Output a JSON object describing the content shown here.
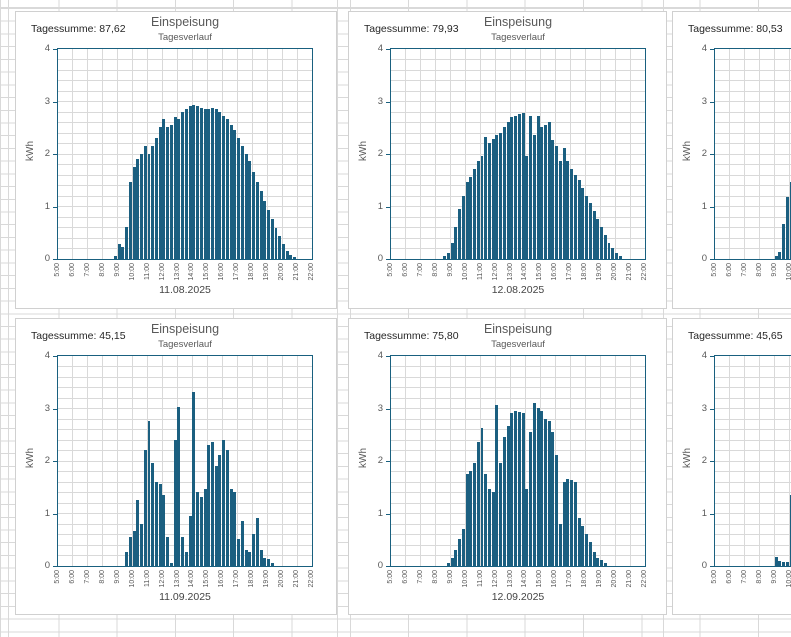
{
  "colors": {
    "bar": "#1b5f80",
    "plot_border": "#19607f",
    "plot_gridline": "#d9d9d9",
    "sheet_gridline": "#d9d9d9",
    "card_border": "#d0d0d0",
    "title_text": "#595959",
    "axis_text": "#595959",
    "summary_text": "#262626",
    "date_text": "#444444"
  },
  "chart_config": {
    "type": "bar",
    "ylabel": "kWh",
    "ylim": [
      0,
      4
    ],
    "y_tick_labels": [
      "4",
      "3",
      "2",
      "1",
      "0"
    ],
    "x_tick_labels": [
      "5:00",
      "6:00",
      "7:00",
      "8:00",
      "9:00",
      "10:00",
      "11:00",
      "12:00",
      "13:00",
      "14:00",
      "15:00",
      "16:00",
      "17:00",
      "18:00",
      "19:00",
      "20:00",
      "21:00",
      "22:00"
    ],
    "x_range": [
      "5:00",
      "22:00"
    ],
    "interval_minutes": 15,
    "grid": "horizontal every 0.2 kWh, vertical every hour"
  },
  "chart_data": [
    {
      "tagessumme": "Tagessumme: 87,62",
      "title": "Einspeisung",
      "subtitle": "Tagesverlauf",
      "date": "11.08.2025",
      "values": [
        0,
        0,
        0,
        0,
        0,
        0,
        0,
        0,
        0,
        0,
        0,
        0,
        0,
        0,
        0,
        0.05,
        0.28,
        0.22,
        0.6,
        1.45,
        1.75,
        1.9,
        2.0,
        2.15,
        2.0,
        2.15,
        2.3,
        2.5,
        2.65,
        2.5,
        2.55,
        2.7,
        2.65,
        2.8,
        2.85,
        2.9,
        2.93,
        2.9,
        2.87,
        2.85,
        2.85,
        2.87,
        2.85,
        2.8,
        2.72,
        2.65,
        2.55,
        2.45,
        2.3,
        2.15,
        2.0,
        1.85,
        1.65,
        1.45,
        1.28,
        1.1,
        0.92,
        0.75,
        0.58,
        0.42,
        0.28,
        0.15,
        0.06,
        0.02,
        0,
        0,
        0,
        0
      ]
    },
    {
      "tagessumme": "Tagessumme: 79,93",
      "title": "Einspeisung",
      "subtitle": "Tagesverlauf",
      "date": "12.08.2025",
      "values": [
        0,
        0,
        0,
        0,
        0,
        0,
        0,
        0,
        0,
        0,
        0,
        0,
        0,
        0,
        0.04,
        0.1,
        0.3,
        0.6,
        0.95,
        1.2,
        1.45,
        1.55,
        1.7,
        1.85,
        1.95,
        2.32,
        2.2,
        2.28,
        2.35,
        2.4,
        2.5,
        2.6,
        2.7,
        2.72,
        2.75,
        2.78,
        1.95,
        2.72,
        2.35,
        2.72,
        2.5,
        2.55,
        2.6,
        2.25,
        2.15,
        1.85,
        2.1,
        1.85,
        1.7,
        1.6,
        1.5,
        1.35,
        1.2,
        1.05,
        0.9,
        0.75,
        0.6,
        0.45,
        0.3,
        0.2,
        0.1,
        0.04,
        0,
        0,
        0,
        0,
        0,
        0
      ]
    },
    {
      "tagessumme": "Tagessumme: 80,53",
      "title": "",
      "subtitle": "",
      "date": "",
      "clipped_right": true,
      "values": [
        0,
        0,
        0,
        0,
        0,
        0,
        0,
        0,
        0,
        0,
        0,
        0,
        0,
        0,
        0,
        0,
        0.04,
        0.12,
        0.65,
        1.18,
        1.45,
        0,
        0,
        0,
        0,
        0,
        0,
        0,
        0,
        0,
        0,
        0,
        0,
        0,
        0,
        0,
        0,
        0,
        0,
        0,
        0,
        0,
        0,
        0,
        0,
        0,
        0,
        0,
        0,
        0,
        0,
        0,
        0,
        0,
        0,
        0,
        0,
        0,
        0,
        0,
        0,
        0,
        0,
        0,
        0,
        0,
        0,
        0
      ]
    },
    {
      "tagessumme": "Tagessumme: 45,15",
      "title": "Einspeisung",
      "subtitle": "Tagesverlauf",
      "date": "11.09.2025",
      "values": [
        0,
        0,
        0,
        0,
        0,
        0,
        0,
        0,
        0,
        0,
        0,
        0,
        0,
        0,
        0,
        0,
        0,
        0,
        0.25,
        0.55,
        0.65,
        1.25,
        0.8,
        2.2,
        2.75,
        1.95,
        1.6,
        1.55,
        1.35,
        0.55,
        0.05,
        2.4,
        3.02,
        0.55,
        0.25,
        0.95,
        3.3,
        1.4,
        1.3,
        1.45,
        2.3,
        2.35,
        1.9,
        2.1,
        2.4,
        2.2,
        1.45,
        1.4,
        0.5,
        0.85,
        0.3,
        0.25,
        0.6,
        0.9,
        0.3,
        0.15,
        0.12,
        0.04,
        0,
        0,
        0,
        0,
        0,
        0,
        0,
        0,
        0,
        0
      ]
    },
    {
      "tagessumme": "Tagessumme: 75,80",
      "title": "Einspeisung",
      "subtitle": "Tagesverlauf",
      "date": "12.09.2025",
      "values": [
        0,
        0,
        0,
        0,
        0,
        0,
        0,
        0,
        0,
        0,
        0,
        0,
        0,
        0,
        0,
        0.05,
        0.15,
        0.3,
        0.5,
        0.7,
        1.75,
        1.8,
        1.95,
        2.35,
        2.62,
        1.75,
        1.45,
        1.4,
        3.05,
        1.95,
        2.45,
        2.65,
        2.9,
        2.95,
        2.92,
        2.9,
        1.45,
        2.55,
        3.1,
        3.0,
        2.95,
        2.8,
        2.75,
        2.55,
        2.1,
        0.8,
        1.6,
        1.65,
        1.62,
        1.6,
        0.9,
        0.75,
        0.6,
        0.45,
        0.25,
        0.15,
        0.1,
        0.05,
        0,
        0,
        0,
        0,
        0,
        0,
        0,
        0,
        0,
        0
      ]
    },
    {
      "tagessumme": "Tagessumme: 45,65",
      "title": "",
      "subtitle": "",
      "date": "",
      "clipped_right": true,
      "values": [
        0,
        0,
        0,
        0,
        0,
        0,
        0,
        0,
        0,
        0,
        0,
        0,
        0,
        0,
        0,
        0,
        0.16,
        0.08,
        0.07,
        0.07,
        1.35,
        0,
        0,
        0,
        0,
        0,
        0,
        0,
        0,
        0,
        0,
        0,
        0,
        0,
        0,
        0,
        0,
        0,
        0,
        0,
        0,
        0,
        0,
        0,
        0,
        0,
        0,
        0,
        0,
        0,
        0,
        0,
        0,
        0,
        0,
        0,
        0,
        0,
        0,
        0,
        0,
        0,
        0,
        0,
        0,
        0,
        0,
        0
      ]
    }
  ]
}
